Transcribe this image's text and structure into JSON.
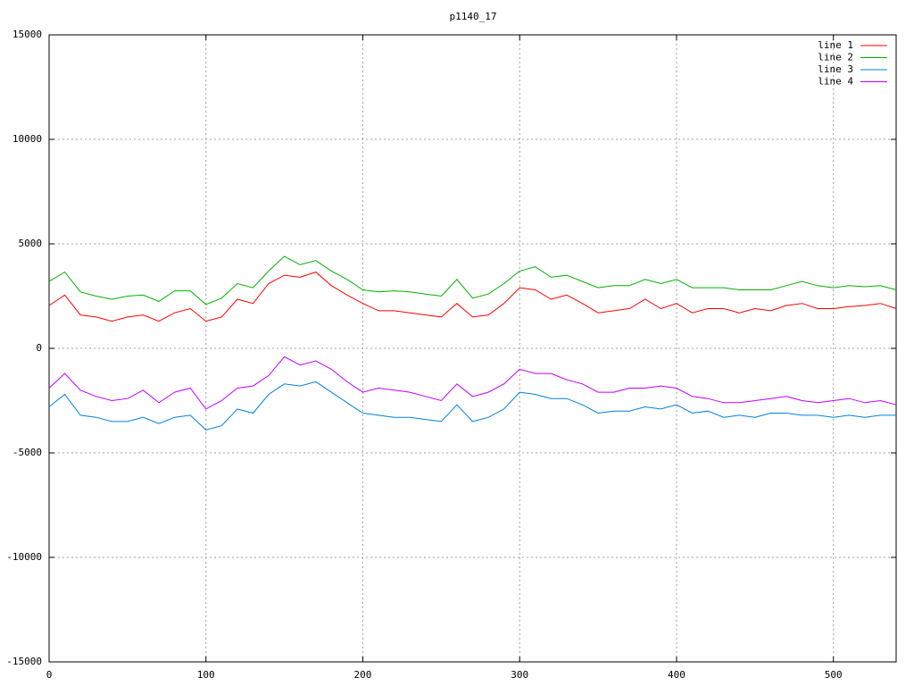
{
  "chart_data": {
    "type": "line",
    "title": "p1140_17",
    "x": [
      0,
      10,
      20,
      30,
      40,
      50,
      60,
      70,
      80,
      90,
      100,
      110,
      120,
      130,
      140,
      150,
      160,
      170,
      180,
      190,
      200,
      210,
      220,
      230,
      240,
      250,
      260,
      270,
      280,
      290,
      300,
      310,
      320,
      330,
      340,
      350,
      360,
      370,
      380,
      390,
      400,
      410,
      420,
      430,
      440,
      450,
      460,
      470,
      480,
      490,
      500,
      510,
      520,
      530,
      540
    ],
    "series": [
      {
        "name": "line 1",
        "color": "#ff0000",
        "values": [
          2050,
          2550,
          1600,
          1500,
          1300,
          1500,
          1600,
          1300,
          1700,
          1900,
          1300,
          1500,
          2350,
          2150,
          3100,
          3500,
          3400,
          3650,
          3000,
          2550,
          2150,
          1800,
          1800,
          1700,
          1600,
          1500,
          2150,
          1500,
          1600,
          2150,
          2900,
          2800,
          2350,
          2550,
          2150,
          1700,
          1800,
          1900,
          2350,
          1900,
          2150,
          1700,
          1900,
          1900,
          1700,
          1900,
          1800,
          2050,
          2150,
          1900,
          1900,
          2000,
          2050,
          2150,
          1900
        ]
      },
      {
        "name": "line 2",
        "color": "#00b000",
        "values": [
          3200,
          3650,
          2700,
          2500,
          2350,
          2500,
          2550,
          2250,
          2750,
          2750,
          2100,
          2400,
          3100,
          2900,
          3700,
          4400,
          4000,
          4200,
          3700,
          3300,
          2800,
          2700,
          2750,
          2700,
          2600,
          2500,
          3300,
          2400,
          2600,
          3100,
          3700,
          3900,
          3400,
          3500,
          3200,
          2900,
          3000,
          3000,
          3300,
          3100,
          3300,
          2900,
          2900,
          2900,
          2800,
          2800,
          2800,
          3000,
          3200,
          3000,
          2900,
          3000,
          2950,
          3000,
          2800
        ]
      },
      {
        "name": "line 3",
        "color": "#0080e0",
        "values": [
          -2800,
          -2200,
          -3200,
          -3300,
          -3500,
          -3500,
          -3300,
          -3600,
          -3300,
          -3200,
          -3900,
          -3700,
          -2900,
          -3100,
          -2200,
          -1700,
          -1800,
          -1600,
          -2100,
          -2600,
          -3100,
          -3200,
          -3300,
          -3300,
          -3400,
          -3500,
          -2700,
          -3500,
          -3300,
          -2900,
          -2100,
          -2200,
          -2400,
          -2400,
          -2700,
          -3100,
          -3000,
          -3000,
          -2800,
          -2900,
          -2700,
          -3100,
          -3000,
          -3300,
          -3200,
          -3300,
          -3100,
          -3100,
          -3200,
          -3200,
          -3300,
          -3200,
          -3300,
          -3200,
          -3200
        ]
      },
      {
        "name": "line 4",
        "color": "#c000ff",
        "values": [
          -1900,
          -1200,
          -2000,
          -2300,
          -2500,
          -2400,
          -2000,
          -2600,
          -2100,
          -1900,
          -2900,
          -2500,
          -1900,
          -1800,
          -1300,
          -400,
          -800,
          -600,
          -1000,
          -1600,
          -2100,
          -1900,
          -2000,
          -2100,
          -2300,
          -2500,
          -1700,
          -2300,
          -2100,
          -1700,
          -1000,
          -1200,
          -1200,
          -1500,
          -1700,
          -2100,
          -2100,
          -1900,
          -1900,
          -1800,
          -1900,
          -2300,
          -2400,
          -2600,
          -2600,
          -2500,
          -2400,
          -2300,
          -2500,
          -2600,
          -2500,
          -2400,
          -2600,
          -2500,
          -2700
        ]
      }
    ],
    "xlim": [
      0,
      540
    ],
    "xticks": [
      0,
      100,
      200,
      300,
      400,
      500
    ],
    "ylim": [
      -15000,
      15000
    ],
    "yticks": [
      -15000,
      -10000,
      -5000,
      0,
      5000,
      10000,
      15000
    ],
    "grid": true,
    "legend": "upper right"
  }
}
